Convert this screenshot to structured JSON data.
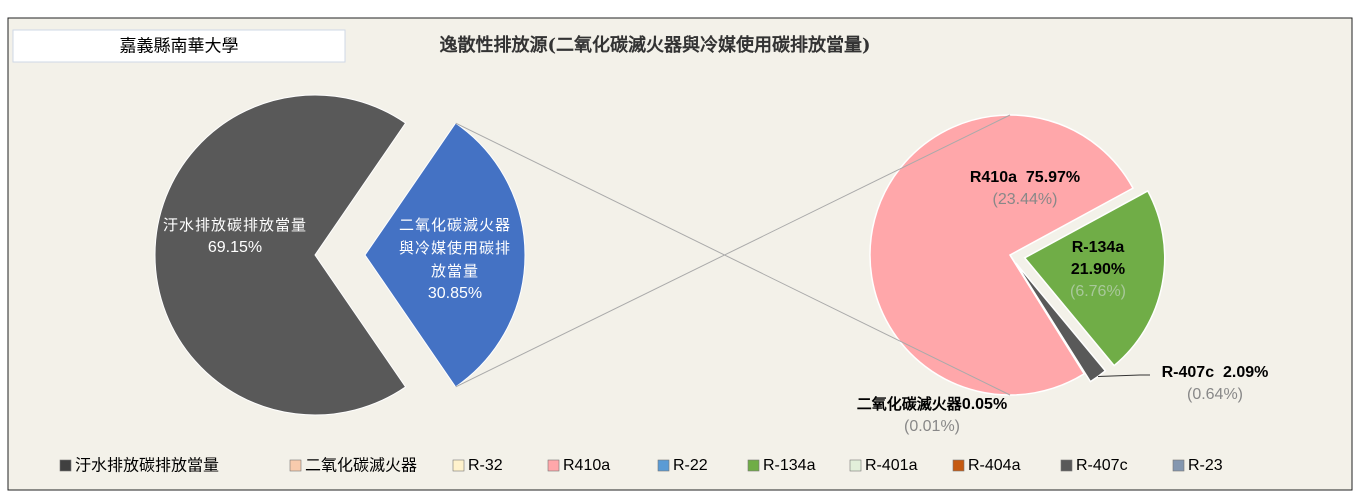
{
  "chart_data": {
    "type": "pie-of-pie",
    "header": "嘉義縣南華大學",
    "title": "逸散性排放源(二氧化碳滅火器與冷媒使用碳排放當量)",
    "main": {
      "categories": [
        "汙水排放碳排放當量",
        "二氧化碳滅火器與冷媒使用碳排放當量"
      ],
      "values": [
        69.15,
        30.85
      ],
      "value_labels": [
        "69.15%",
        "30.85%"
      ],
      "colors": [
        "#595959",
        "#4472c4"
      ]
    },
    "secondary": {
      "categories": [
        "R410a",
        "R-134a",
        "R-407c",
        "二氧化碳滅火器"
      ],
      "values": [
        75.97,
        21.9,
        2.09,
        0.05
      ],
      "value_labels": [
        "75.97%",
        "21.90%",
        "2.09%",
        "0.05%"
      ],
      "total_share_values": [
        23.44,
        6.76,
        0.64,
        0.01
      ],
      "total_share_labels": [
        "(23.44%)",
        "(6.76%)",
        "(0.64%)",
        "(0.01%)"
      ],
      "colors": [
        "#ffa7aa",
        "#70ad47",
        "#595959",
        "#f8cbad"
      ]
    },
    "legend": [
      {
        "name": "汙水排放碳排放當量",
        "color": "#404040"
      },
      {
        "name": "二氧化碳滅火器",
        "color": "#f8cbad"
      },
      {
        "name": "R-32",
        "color": "#fff2cc"
      },
      {
        "name": "R410a",
        "color": "#ffa7aa"
      },
      {
        "name": "R-22",
        "color": "#5b9bd5"
      },
      {
        "name": "R-134a",
        "color": "#70ad47"
      },
      {
        "name": "R-401a",
        "color": "#e2efda"
      },
      {
        "name": "R-404a",
        "color": "#c55a11"
      },
      {
        "name": "R-407c",
        "color": "#595959"
      },
      {
        "name": "R-23",
        "color": "#8497b0"
      }
    ]
  }
}
